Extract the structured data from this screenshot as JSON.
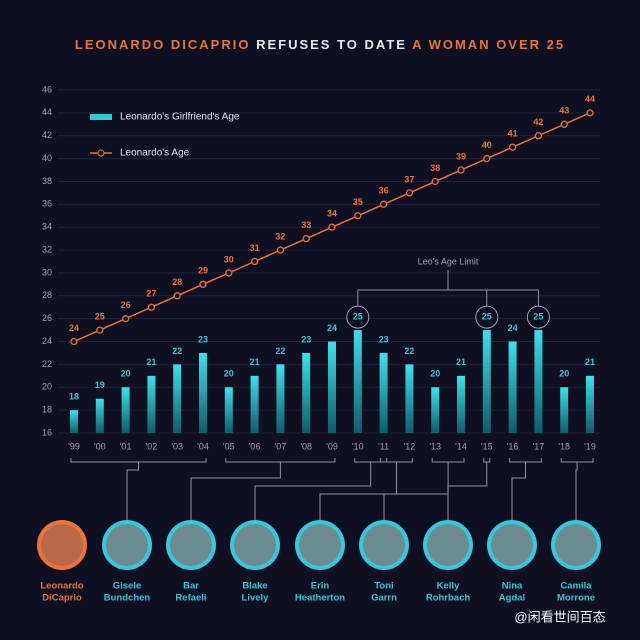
{
  "chart_data": {
    "type": "combo",
    "title": [
      "LEONARDO DICAPRIO",
      "REFUSES TO DATE",
      "A WOMAN OVER 25"
    ],
    "categories": [
      "'99",
      "'00",
      "'01",
      "'02",
      "'03",
      "'04",
      "'05",
      "'06",
      "'07",
      "'08",
      "'09",
      "'10",
      "'11",
      "'12",
      "'13",
      "'14",
      "'15",
      "'16",
      "'17",
      "'18",
      "'19"
    ],
    "series": [
      {
        "name": "Leonardo's Girlfriend's Age",
        "type": "bar",
        "color": "#35c9d6",
        "values": [
          18,
          19,
          20,
          21,
          22,
          23,
          20,
          21,
          22,
          23,
          24,
          25,
          23,
          22,
          20,
          21,
          25,
          24,
          25,
          20,
          21
        ]
      },
      {
        "name": "Leonardo's Age",
        "type": "line",
        "color": "#e8743b",
        "values": [
          24,
          25,
          26,
          27,
          28,
          29,
          30,
          31,
          32,
          33,
          34,
          35,
          36,
          37,
          38,
          39,
          40,
          41,
          42,
          43,
          44
        ]
      }
    ],
    "ylim": [
      16,
      46
    ],
    "yticks": [
      16,
      18,
      20,
      22,
      24,
      26,
      28,
      30,
      32,
      34,
      36,
      38,
      40,
      42,
      44,
      46
    ],
    "grid": true,
    "annotation": "Leo's Age Limit",
    "people": [
      [
        "Leonardo",
        "DiCaprio"
      ],
      [
        "Gisele",
        "Bundchen"
      ],
      [
        "Bar",
        "Refaeli"
      ],
      [
        "Blake",
        "Lively"
      ],
      [
        "Erin",
        "Heatherton"
      ],
      [
        "Toni",
        "Garrn"
      ],
      [
        "Kelly",
        "Rohrbach"
      ],
      [
        "Nina",
        "Agdal"
      ],
      [
        "Camila",
        "Morrone"
      ]
    ],
    "watermark": "@闲看世间百态"
  }
}
